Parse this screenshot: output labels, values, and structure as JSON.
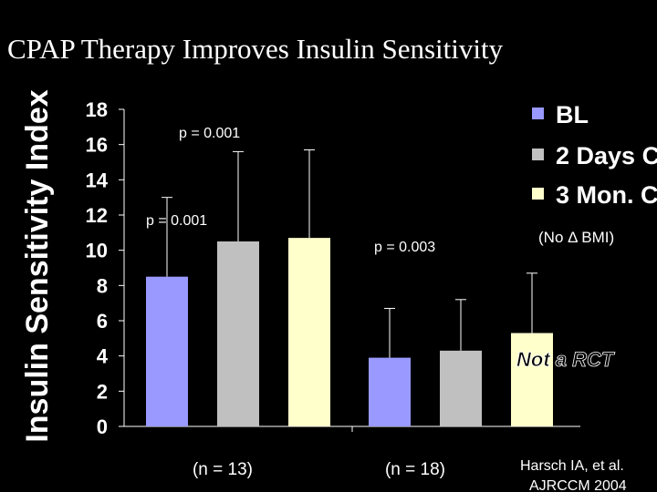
{
  "title": "CPAP Therapy Improves Insulin Sensitivity",
  "chart_data": {
    "type": "bar",
    "ylabel": "Insulin Sensitivity Index",
    "ylim": [
      0,
      18
    ],
    "yticks": [
      0,
      2,
      4,
      6,
      8,
      10,
      12,
      14,
      16,
      18
    ],
    "groups": [
      {
        "label": "(n = 13)"
      },
      {
        "label": "(n = 18)"
      }
    ],
    "series": [
      {
        "name": "BL",
        "color": "#9999ff",
        "values": [
          8.5,
          3.9
        ],
        "errors": [
          4.5,
          2.8
        ]
      },
      {
        "name": "2 Days C",
        "color": "#c0c0c0",
        "values": [
          10.5,
          4.3
        ],
        "errors": [
          5.1,
          2.9
        ]
      },
      {
        "name": "3 Mon. C",
        "color": "#ffffcc",
        "values": [
          10.7,
          5.3
        ],
        "errors": [
          5.0,
          3.4
        ]
      }
    ],
    "annotations": [
      "p = 0.001",
      "p = 0.001",
      "p = 0.003",
      "(No Δ BMI)",
      "Not a RCT"
    ]
  },
  "citation": {
    "line1": "Harsch IA, et al.",
    "line2": "AJRCCM 2004"
  }
}
